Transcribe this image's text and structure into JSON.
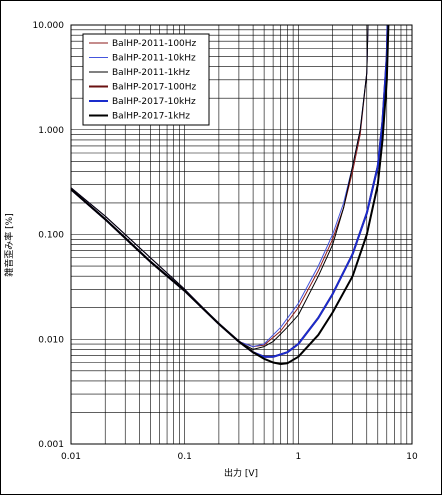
{
  "chart_data": {
    "type": "line",
    "xscale": "log",
    "yscale": "log",
    "xlabel": "出力 [V]",
    "ylabel": "雑音歪み率 [%]",
    "xlim": [
      0.01,
      10
    ],
    "ylim": [
      0.001,
      10
    ],
    "grid": true,
    "legend_position": "top-left",
    "xticks": [
      "0.01",
      "0.1",
      "1",
      "10"
    ],
    "yticks": [
      "0.001",
      "0.010",
      "0.100",
      "1.000",
      "10.000"
    ],
    "series": [
      {
        "name": "BalHP-2011-100Hz",
        "color": "#8b1a1a",
        "width": 1,
        "x": [
          0.01,
          0.02,
          0.05,
          0.1,
          0.2,
          0.3,
          0.4,
          0.5,
          0.7,
          1,
          1.5,
          2,
          2.5,
          3,
          3.5,
          4,
          4.1
        ],
        "y": [
          0.28,
          0.15,
          0.06,
          0.03,
          0.014,
          0.0095,
          0.0085,
          0.0088,
          0.012,
          0.02,
          0.045,
          0.09,
          0.18,
          0.4,
          0.9,
          3.5,
          10
        ]
      },
      {
        "name": "BalHP-2011-10kHz",
        "color": "#4455dd",
        "width": 1,
        "x": [
          0.01,
          0.02,
          0.05,
          0.1,
          0.2,
          0.3,
          0.4,
          0.5,
          0.7,
          1,
          1.5,
          2,
          2.5,
          3,
          3.5,
          4,
          4.1
        ],
        "y": [
          0.28,
          0.15,
          0.06,
          0.03,
          0.014,
          0.0095,
          0.0085,
          0.009,
          0.013,
          0.022,
          0.05,
          0.1,
          0.2,
          0.45,
          1.0,
          3.5,
          10
        ]
      },
      {
        "name": "BalHP-2011-1kHz",
        "color": "#000000",
        "width": 1,
        "x": [
          0.01,
          0.02,
          0.05,
          0.1,
          0.2,
          0.3,
          0.4,
          0.5,
          0.6,
          0.8,
          1,
          1.5,
          2,
          2.5,
          3,
          3.5,
          4,
          4.1
        ],
        "y": [
          0.28,
          0.15,
          0.06,
          0.03,
          0.014,
          0.0095,
          0.008,
          0.0085,
          0.0095,
          0.013,
          0.017,
          0.04,
          0.08,
          0.18,
          0.45,
          1.0,
          3.5,
          10
        ]
      },
      {
        "name": "BalHP-2017-100Hz",
        "color": "#6a1010",
        "width": 2,
        "x": [
          0.01,
          0.02,
          0.05,
          0.1,
          0.2,
          0.3,
          0.4,
          0.5,
          0.6,
          0.8,
          1,
          1.5,
          2,
          3,
          4,
          5,
          5.5,
          6,
          6.1
        ],
        "y": [
          0.27,
          0.14,
          0.055,
          0.029,
          0.014,
          0.0095,
          0.0075,
          0.0068,
          0.0068,
          0.0075,
          0.009,
          0.016,
          0.027,
          0.065,
          0.16,
          0.45,
          1.2,
          5,
          10
        ]
      },
      {
        "name": "BalHP-2017-10kHz",
        "color": "#1a2ccc",
        "width": 2,
        "x": [
          0.01,
          0.02,
          0.05,
          0.1,
          0.2,
          0.3,
          0.4,
          0.5,
          0.6,
          0.8,
          1,
          1.5,
          2,
          3,
          4,
          5,
          5.5,
          6,
          6.1
        ],
        "y": [
          0.27,
          0.14,
          0.055,
          0.029,
          0.014,
          0.0095,
          0.0075,
          0.0068,
          0.0068,
          0.0075,
          0.009,
          0.016,
          0.027,
          0.065,
          0.16,
          0.45,
          1.2,
          5,
          10
        ]
      },
      {
        "name": "BalHP-2017-1kHz",
        "color": "#000000",
        "width": 2,
        "x": [
          0.01,
          0.02,
          0.05,
          0.1,
          0.2,
          0.3,
          0.4,
          0.5,
          0.6,
          0.7,
          0.8,
          1,
          1.5,
          2,
          3,
          4,
          5,
          5.5,
          6,
          6.2
        ],
        "y": [
          0.27,
          0.14,
          0.055,
          0.029,
          0.014,
          0.0095,
          0.0075,
          0.0065,
          0.006,
          0.0058,
          0.0059,
          0.0068,
          0.011,
          0.018,
          0.04,
          0.1,
          0.3,
          0.8,
          3,
          10
        ]
      }
    ]
  }
}
